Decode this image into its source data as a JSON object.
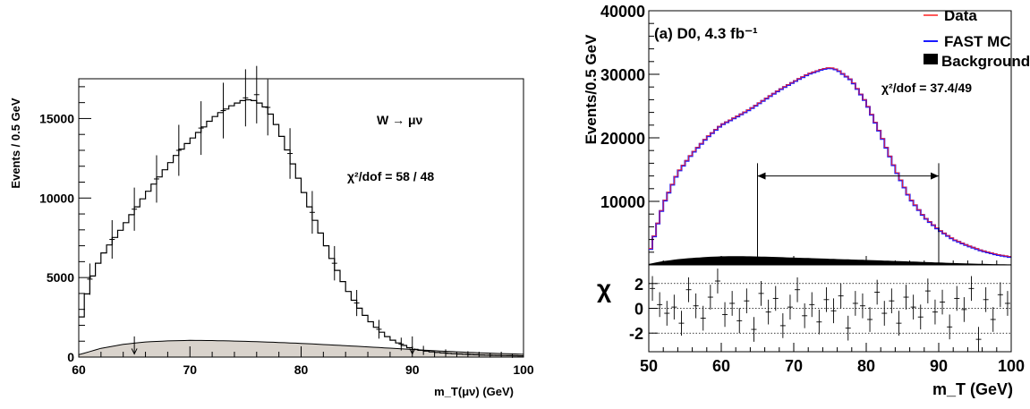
{
  "chart_data": [
    {
      "type": "line",
      "panel": "left",
      "xlabel": "m_T(μν) (GeV)",
      "ylabel": "Events / 0.5 GeV",
      "xlim": [
        60,
        100
      ],
      "ylim": [
        0,
        17500
      ],
      "xticks": [
        "60",
        "70",
        "80",
        "90",
        "100"
      ],
      "yticks": [
        "0",
        "5000",
        "10000",
        "15000"
      ],
      "annotations": {
        "process": "W → μν",
        "chi2": "χ²/dof = 58 / 48"
      },
      "fit_window_markers": [
        65,
        90
      ],
      "series": [
        {
          "kind": "simulation-histogram",
          "x": [
            60,
            61,
            62,
            63,
            64,
            65,
            66,
            67,
            68,
            69,
            70,
            71,
            72,
            73,
            74,
            75,
            76,
            77,
            78,
            79,
            80,
            81,
            82,
            83,
            84,
            85,
            86,
            87,
            88,
            89,
            90,
            91,
            92,
            93,
            94,
            95,
            96,
            97,
            98,
            99,
            100
          ],
          "values": [
            1800,
            4700,
            6300,
            7300,
            8200,
            9200,
            10200,
            11100,
            12000,
            12900,
            13600,
            14300,
            15000,
            15500,
            15900,
            16200,
            16100,
            15600,
            14300,
            12600,
            10800,
            9000,
            7400,
            5800,
            4400,
            3300,
            2400,
            1700,
            1150,
            800,
            520,
            400,
            310,
            250,
            205,
            170,
            140,
            118,
            100,
            85,
            75
          ]
        },
        {
          "kind": "data-points",
          "x": [
            61,
            63,
            65,
            67,
            69,
            71,
            73,
            75,
            76,
            77,
            79,
            81,
            83,
            85,
            87,
            89,
            91,
            93,
            95,
            97,
            99
          ],
          "values": [
            4900,
            7400,
            9300,
            11200,
            13000,
            14400,
            15500,
            16300,
            16500,
            15700,
            12800,
            9100,
            5900,
            3400,
            1750,
            820,
            420,
            260,
            180,
            125,
            90
          ]
        },
        {
          "kind": "background",
          "x": [
            60,
            62,
            64,
            66,
            68,
            70,
            72,
            74,
            76,
            78,
            80,
            82,
            84,
            86,
            88,
            90,
            92,
            94,
            96,
            98,
            100
          ],
          "values": [
            150,
            550,
            800,
            950,
            1020,
            1050,
            1040,
            1010,
            970,
            920,
            860,
            790,
            720,
            640,
            560,
            480,
            400,
            330,
            270,
            220,
            180
          ]
        }
      ]
    },
    {
      "type": "line",
      "panel": "right",
      "title": "(a) D0, 4.3 fb⁻¹",
      "xlabel": "m_T (GeV)",
      "ylabel": "Events/0.5 GeV",
      "xlim": [
        50,
        100
      ],
      "ylim": [
        0,
        40000
      ],
      "xticks": [
        "50",
        "60",
        "70",
        "80",
        "90",
        "100"
      ],
      "yticks": [
        "10000",
        "20000",
        "30000",
        "40000"
      ],
      "legend": {
        "placement": "top-right",
        "entries": [
          "Data",
          "FAST MC",
          "Background"
        ]
      },
      "chi2_text": "χ²/dof = 37.4/49",
      "fit_window": [
        65,
        90
      ],
      "colors": {
        "data": "#ff2020",
        "fast_mc": "#1a1aff",
        "background": "#000000"
      },
      "series": [
        {
          "name": "FAST MC",
          "x": [
            50,
            52,
            54,
            56,
            58,
            60,
            62,
            64,
            66,
            68,
            70,
            72,
            74,
            75,
            76,
            78,
            80,
            82,
            84,
            86,
            88,
            90,
            92,
            94,
            96,
            98,
            100
          ],
          "values": [
            1500,
            9500,
            14500,
            17500,
            20000,
            22000,
            23200,
            24500,
            26000,
            27500,
            28800,
            30000,
            30800,
            31000,
            30700,
            29000,
            25500,
            20500,
            15000,
            10500,
            7500,
            5500,
            4000,
            3000,
            2200,
            1600,
            1200
          ]
        },
        {
          "name": "Background",
          "x": [
            50,
            52,
            54,
            56,
            58,
            60,
            62,
            64,
            66,
            68,
            70,
            72,
            74,
            76,
            78,
            80,
            82,
            84,
            86,
            88,
            90,
            92,
            94,
            96,
            98,
            100
          ],
          "values": [
            150,
            600,
            900,
            1100,
            1250,
            1350,
            1380,
            1350,
            1300,
            1230,
            1150,
            1080,
            1000,
            920,
            850,
            780,
            700,
            620,
            540,
            460,
            380,
            300,
            230,
            170,
            120,
            80
          ]
        }
      ],
      "residual_panel": {
        "ylabel": "χ",
        "yticks": [
          "2",
          "0",
          "-2"
        ],
        "ylim": [
          -3.5,
          3.5
        ],
        "reference_lines": [
          -2,
          0,
          2
        ],
        "x": [
          50.5,
          51.5,
          52.5,
          53.5,
          54.5,
          55.5,
          56.5,
          57.5,
          58.5,
          59.5,
          60.5,
          61.5,
          62.5,
          63.5,
          64.5,
          65.5,
          66.5,
          67.5,
          68.5,
          69.5,
          70.5,
          71.5,
          72.5,
          73.5,
          74.5,
          75.5,
          76.5,
          77.5,
          78.5,
          79.5,
          80.5,
          81.5,
          82.5,
          83.5,
          84.5,
          85.5,
          86.5,
          87.5,
          88.5,
          89.5,
          90.5,
          91.5,
          92.5,
          93.5,
          94.5,
          95.5,
          96.5,
          97.5,
          98.5,
          99.5
        ],
        "values": [
          1.6,
          0.3,
          -0.4,
          0.1,
          -1.2,
          1.5,
          0.2,
          -0.8,
          0.9,
          2.2,
          -0.5,
          0.4,
          -1.0,
          0.6,
          -1.7,
          1.2,
          -0.3,
          0.8,
          -1.4,
          0.1,
          1.5,
          -0.6,
          0.3,
          -1.1,
          0.7,
          -0.2,
          1.0,
          -1.6,
          0.4,
          0.2,
          -0.9,
          1.3,
          -0.4,
          0.6,
          -1.2,
          0.9,
          0.1,
          -0.7,
          1.4,
          -0.3,
          0.5,
          -1.5,
          0.8,
          -0.1,
          1.6,
          -2.5,
          0.7,
          -0.9,
          1.1,
          0.4
        ]
      }
    }
  ]
}
